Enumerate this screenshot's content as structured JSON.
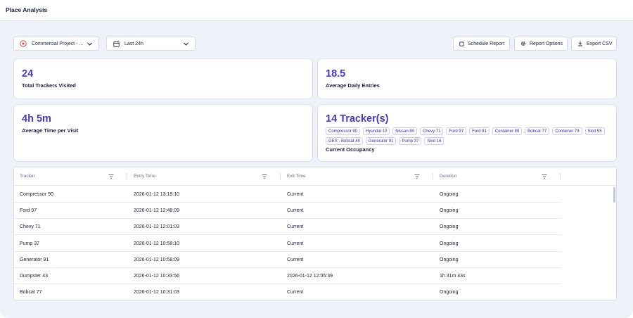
{
  "header": {
    "title": "Place Analysis"
  },
  "filters": {
    "project": {
      "label": "Commercial Project - ...",
      "icon": "target-circle-icon",
      "icon_color": "#e0453a"
    },
    "range": {
      "label": "Last 24h",
      "icon": "calendar-icon"
    }
  },
  "actions": {
    "schedule": {
      "label": "Schedule Report",
      "icon": "square-icon"
    },
    "options": {
      "label": "Report Options",
      "icon": "gear-icon"
    },
    "export": {
      "label": "Export CSV",
      "icon": "download-icon"
    }
  },
  "stats": {
    "trackers_visited": {
      "value": "24",
      "label": "Total Trackers Visited"
    },
    "daily_entries": {
      "value": "18.5",
      "label": "Average Daily Entries"
    },
    "avg_time": {
      "value": "4h 5m",
      "label": "Average Time per Visit"
    },
    "occupancy": {
      "value": "14 Tracker(s)",
      "label": "Current Occupancy",
      "chips": [
        "Compressor 90",
        "Hyundai 10",
        "Nissan 80",
        "Chevy 71",
        "Ford 97",
        "Ford 81",
        "Container 89",
        "Bobcat 77",
        "Container 79",
        "Skid 55",
        "GES - Bobcat 40",
        "Generator 91",
        "Pump 37",
        "Skid 16"
      ]
    }
  },
  "table": {
    "columns": [
      "Tracker",
      "Entry Time",
      "Exit Time",
      "Duration"
    ],
    "rows": [
      {
        "tracker": "Compressor 90",
        "entry": "2026-01-12 13:18:10",
        "exit": "Current",
        "duration": "Ongoing"
      },
      {
        "tracker": "Ford 97",
        "entry": "2026-01-12 12:48:09",
        "exit": "Current",
        "duration": "Ongoing"
      },
      {
        "tracker": "Chevy 71",
        "entry": "2026-01-12 12:01:03",
        "exit": "Current",
        "duration": "Ongoing"
      },
      {
        "tracker": "Pump 37",
        "entry": "2026-01-12 10:58:10",
        "exit": "Current",
        "duration": "Ongoing"
      },
      {
        "tracker": "Generator 91",
        "entry": "2026-01-12 10:58:09",
        "exit": "Current",
        "duration": "Ongoing"
      },
      {
        "tracker": "Dumpster 43",
        "entry": "2026-01-12 10:33:56",
        "exit": "2026-01-12 12:05:39",
        "duration": "1h 31m 43s"
      },
      {
        "tracker": "Bobcat 77",
        "entry": "2026-01-12 10:31:03",
        "exit": "Current",
        "duration": "Ongoing"
      }
    ]
  },
  "colors": {
    "accent": "#4338ca",
    "background": "#eef1f7"
  }
}
